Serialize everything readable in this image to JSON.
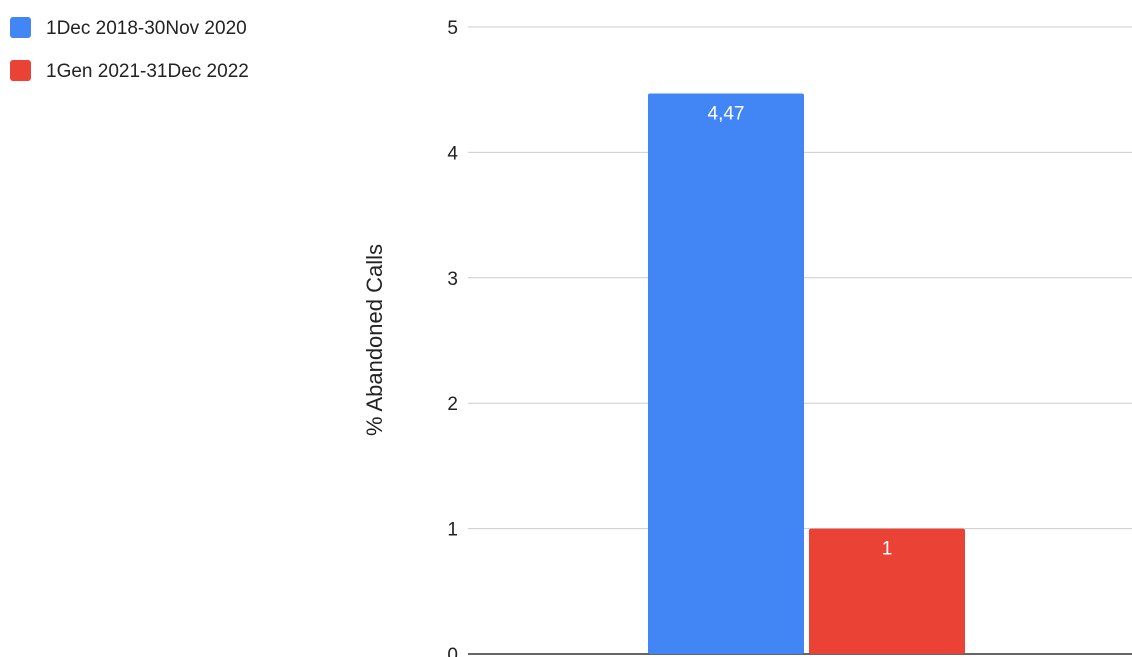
{
  "chart_data": {
    "type": "bar",
    "title": "",
    "xlabel": "",
    "ylabel": "% Abandoned Calls",
    "ylim": [
      0,
      5
    ],
    "yticks": [
      0,
      1,
      2,
      3,
      4,
      5
    ],
    "grid": true,
    "legend_position": "top-left",
    "series": [
      {
        "name": "1Dec 2018-30Nov 2020",
        "value": 4.47,
        "label": "4,47",
        "color": "#4285F4"
      },
      {
        "name": "1Gen 2021-31Dec 2022",
        "value": 1,
        "label": "1",
        "color": "#EA4335"
      }
    ]
  }
}
